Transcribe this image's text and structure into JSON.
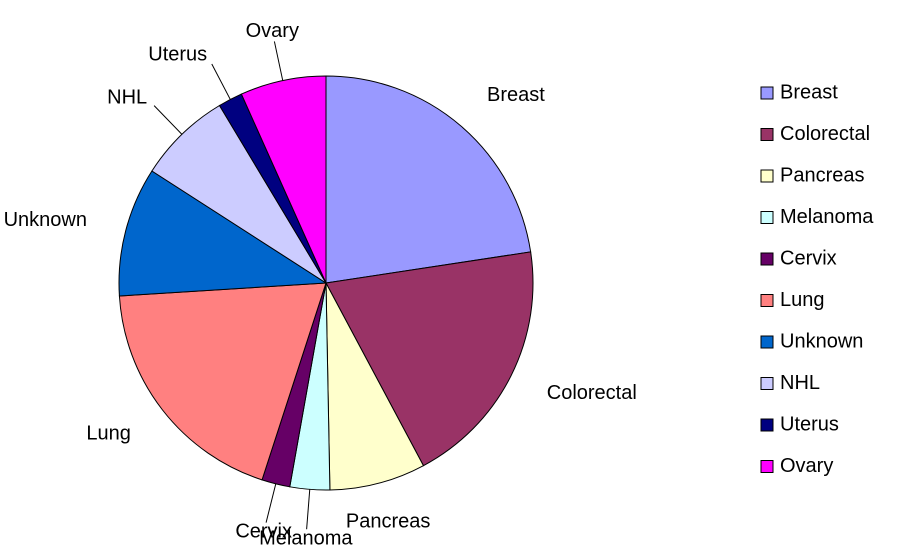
{
  "chart_data": {
    "type": "pie",
    "categories": [
      "Breast",
      "Colorectal",
      "Pancreas",
      "Melanoma",
      "Cervix",
      "Lung",
      "Unknown",
      "NHL",
      "Uterus",
      "Ovary"
    ],
    "values": [
      22.6,
      19.6,
      7.5,
      3.1,
      2.2,
      19.0,
      10.1,
      7.3,
      1.9,
      6.7
    ],
    "colors": [
      "#9999ff",
      "#993366",
      "#ffffcc",
      "#ccffff",
      "#660066",
      "#ff8080",
      "#0066cc",
      "#ccccff",
      "#000080",
      "#ff00ff"
    ],
    "legend": "right"
  }
}
